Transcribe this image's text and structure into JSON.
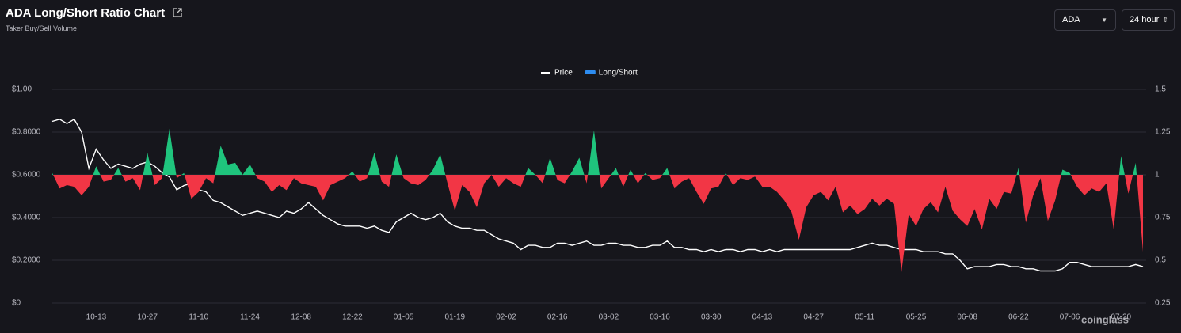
{
  "header": {
    "title": "ADA Long/Short Ratio Chart",
    "subtitle": "Taker Buy/Sell Volume"
  },
  "controls": {
    "symbol": "ADA",
    "interval": "24 hour"
  },
  "watermark": "coinglass",
  "chart_data": {
    "type": "line-area",
    "categories": [
      null,
      null,
      null,
      null,
      null,
      null,
      "10-13",
      null,
      null,
      null,
      null,
      null,
      null,
      "10-27",
      null,
      null,
      null,
      null,
      null,
      null,
      "11-10",
      null,
      null,
      null,
      null,
      null,
      null,
      "11-24",
      null,
      null,
      null,
      null,
      null,
      null,
      "12-08",
      null,
      null,
      null,
      null,
      null,
      null,
      "12-22",
      null,
      null,
      null,
      null,
      null,
      null,
      "01-05",
      null,
      null,
      null,
      null,
      null,
      null,
      "01-19",
      null,
      null,
      null,
      null,
      null,
      null,
      "02-02",
      null,
      null,
      null,
      null,
      null,
      null,
      "02-16",
      null,
      null,
      null,
      null,
      null,
      null,
      "03-02",
      null,
      null,
      null,
      null,
      null,
      null,
      "03-16",
      null,
      null,
      null,
      null,
      null,
      null,
      "03-30",
      null,
      null,
      null,
      null,
      null,
      null,
      "04-13",
      null,
      null,
      null,
      null,
      null,
      null,
      "04-27",
      null,
      null,
      null,
      null,
      null,
      null,
      "05-11",
      null,
      null,
      null,
      null,
      null,
      null,
      "05-25",
      null,
      null,
      null,
      null,
      null,
      null,
      "06-08",
      null,
      null,
      null,
      null,
      null,
      null,
      "06-22",
      null,
      null,
      null,
      null,
      null,
      null,
      "07-06",
      null,
      null,
      null,
      null,
      null,
      null,
      "07-20",
      null,
      null,
      null
    ],
    "series": [
      {
        "name": "Price",
        "color": "#ffffff",
        "axis": "y",
        "values": [
          0.85,
          0.86,
          0.84,
          0.86,
          0.8,
          0.63,
          0.72,
          0.67,
          0.63,
          0.65,
          0.64,
          0.63,
          0.65,
          0.66,
          0.64,
          0.61,
          0.59,
          0.53,
          0.55,
          0.56,
          0.53,
          0.52,
          0.48,
          0.47,
          0.45,
          0.43,
          0.41,
          0.42,
          0.43,
          0.42,
          0.41,
          0.4,
          0.43,
          0.42,
          0.44,
          0.47,
          0.44,
          0.41,
          0.39,
          0.37,
          0.36,
          0.36,
          0.36,
          0.35,
          0.36,
          0.34,
          0.33,
          0.38,
          0.4,
          0.42,
          0.4,
          0.39,
          0.4,
          0.42,
          0.38,
          0.36,
          0.35,
          0.35,
          0.34,
          0.34,
          0.32,
          0.3,
          0.29,
          0.28,
          0.25,
          0.27,
          0.27,
          0.26,
          0.26,
          0.28,
          0.28,
          0.27,
          0.28,
          0.29,
          0.27,
          0.27,
          0.28,
          0.28,
          0.27,
          0.27,
          0.26,
          0.26,
          0.27,
          0.27,
          0.29,
          0.26,
          0.26,
          0.25,
          0.25,
          0.24,
          0.25,
          0.24,
          0.25,
          0.25,
          0.24,
          0.25,
          0.25,
          0.24,
          0.25,
          0.24,
          0.25,
          0.25,
          0.25,
          0.25,
          0.25,
          0.25,
          0.25,
          0.25,
          0.25,
          0.25,
          0.26,
          0.27,
          0.28,
          0.27,
          0.27,
          0.26,
          0.25,
          0.25,
          0.25,
          0.24,
          0.24,
          0.24,
          0.23,
          0.23,
          0.2,
          0.16,
          0.17,
          0.17,
          0.17,
          0.18,
          0.18,
          0.17,
          0.17,
          0.16,
          0.16,
          0.15,
          0.15,
          0.15,
          0.16,
          0.19,
          0.19,
          0.18,
          0.17,
          0.17,
          0.17,
          0.17,
          0.17,
          0.17,
          0.18,
          0.17
        ]
      },
      {
        "name": "Long/Short",
        "color": "#2d8cf0",
        "axis": "y2",
        "positive_color": "#1fc47d",
        "negative_color": "#f23645",
        "baseline": 1,
        "values": [
          1.01,
          0.92,
          0.94,
          0.93,
          0.88,
          0.93,
          1.05,
          0.96,
          0.97,
          1.04,
          0.96,
          0.98,
          0.91,
          1.13,
          0.94,
          0.98,
          1.27,
          0.98,
          1.01,
          0.86,
          0.9,
          0.98,
          0.95,
          1.17,
          1.06,
          1.07,
          1.0,
          1.06,
          0.98,
          0.96,
          0.9,
          0.94,
          0.91,
          0.98,
          0.95,
          0.94,
          0.93,
          0.85,
          0.94,
          0.96,
          0.98,
          1.02,
          0.96,
          0.98,
          1.13,
          0.96,
          0.93,
          1.12,
          0.98,
          0.95,
          0.94,
          0.97,
          1.03,
          1.12,
          0.95,
          0.79,
          0.94,
          0.9,
          0.81,
          0.95,
          1.0,
          0.93,
          0.98,
          0.95,
          0.93,
          1.04,
          1.0,
          0.95,
          1.1,
          0.97,
          0.95,
          1.02,
          1.1,
          0.95,
          1.26,
          0.92,
          0.98,
          1.04,
          0.93,
          1.03,
          0.95,
          1.01,
          0.97,
          0.98,
          1.04,
          0.92,
          0.96,
          0.98,
          0.9,
          0.83,
          0.92,
          0.93,
          1.01,
          0.94,
          0.98,
          0.97,
          0.99,
          0.93,
          0.93,
          0.9,
          0.85,
          0.78,
          0.62,
          0.81,
          0.88,
          0.9,
          0.85,
          0.93,
          0.78,
          0.82,
          0.77,
          0.8,
          0.86,
          0.82,
          0.86,
          0.83,
          0.43,
          0.77,
          0.7,
          0.8,
          0.84,
          0.78,
          0.93,
          0.79,
          0.74,
          0.7,
          0.8,
          0.68,
          0.86,
          0.8,
          0.9,
          0.89,
          1.04,
          0.72,
          0.88,
          0.98,
          0.73,
          0.85,
          1.03,
          1.01,
          0.93,
          0.88,
          0.92,
          0.9,
          0.95,
          0.68,
          1.11,
          0.89,
          1.07,
          0.55
        ]
      }
    ],
    "ylim": [
      0,
      1.0
    ],
    "yticks": [
      {
        "value": 0,
        "label": "$0"
      },
      {
        "value": 0.2,
        "label": "$0.2000"
      },
      {
        "value": 0.4,
        "label": "$0.4000"
      },
      {
        "value": 0.6,
        "label": "$0.6000"
      },
      {
        "value": 0.8,
        "label": "$0.8000"
      },
      {
        "value": 1.0,
        "label": "$1.00"
      }
    ],
    "y2lim": [
      0.25,
      1.5
    ],
    "y2ticks": [
      0.25,
      0.5,
      0.75,
      1,
      1.25,
      1.5
    ],
    "grid": true,
    "legend": "top"
  }
}
